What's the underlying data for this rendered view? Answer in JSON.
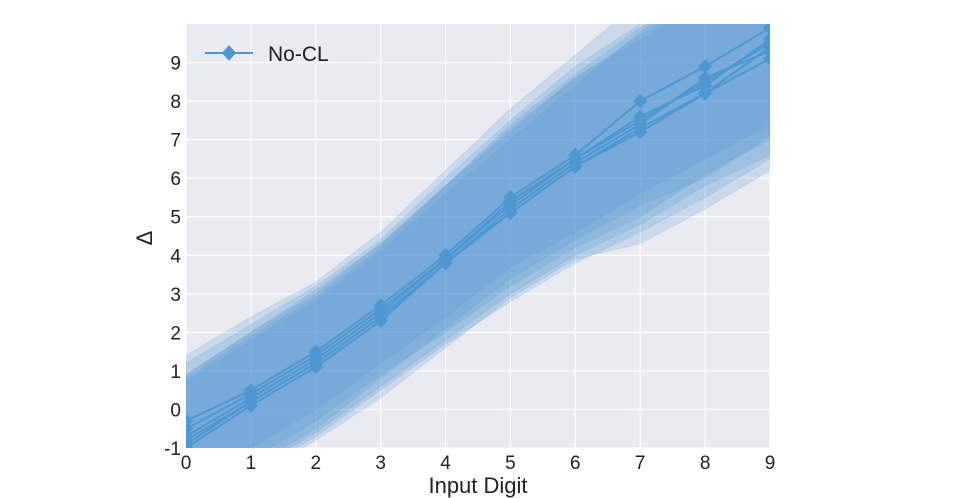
{
  "chart_data": {
    "type": "line",
    "title": "",
    "xlabel": "Input Digit",
    "ylabel": "Δ",
    "xlim": [
      0,
      9
    ],
    "ylim": [
      -1,
      10
    ],
    "xticks": [
      0,
      1,
      2,
      3,
      4,
      5,
      6,
      7,
      8,
      9
    ],
    "yticks": [
      -1,
      0,
      1,
      2,
      3,
      4,
      5,
      6,
      7,
      8,
      9
    ],
    "x": [
      0,
      1,
      2,
      3,
      4,
      5,
      6,
      7,
      8,
      9
    ],
    "grid": true,
    "legend": {
      "placement": "top-left",
      "entries": [
        "No-CL"
      ]
    },
    "color": "#4f97d3",
    "background": "#eaeaf2",
    "runs": [
      {
        "values": [
          -0.8,
          0.2,
          1.2,
          2.4,
          3.8,
          5.1,
          6.3,
          7.2,
          8.2,
          9.1
        ],
        "lower": [
          -2.5,
          -1.6,
          -0.6,
          0.6,
          1.8,
          3.0,
          4.0,
          4.8,
          5.8,
          6.6
        ],
        "upper": [
          0.9,
          2.0,
          3.0,
          4.3,
          5.8,
          7.2,
          8.6,
          9.6,
          10.6,
          11.6
        ]
      },
      {
        "values": [
          -0.5,
          0.4,
          1.4,
          2.6,
          3.9,
          5.3,
          6.5,
          7.5,
          8.5,
          9.5
        ],
        "lower": [
          -2.2,
          -1.3,
          -0.3,
          0.9,
          2.0,
          3.2,
          4.2,
          5.0,
          6.1,
          7.0
        ],
        "upper": [
          1.2,
          2.2,
          3.2,
          4.4,
          6.0,
          7.5,
          8.9,
          10.0,
          11.0,
          12.0
        ]
      },
      {
        "values": [
          -0.3,
          0.5,
          1.5,
          2.7,
          4.0,
          5.5,
          6.6,
          8.0,
          8.9,
          9.9
        ],
        "lower": [
          -2.0,
          -1.0,
          0.0,
          1.2,
          2.4,
          3.7,
          4.6,
          5.6,
          6.5,
          7.4
        ],
        "upper": [
          1.4,
          2.4,
          3.3,
          4.6,
          6.2,
          7.8,
          9.2,
          10.6,
          11.5,
          12.4
        ]
      },
      {
        "values": [
          -1.0,
          0.1,
          1.1,
          2.3,
          3.8,
          5.2,
          6.4,
          7.4,
          8.6,
          9.3
        ],
        "lower": [
          -2.8,
          -1.8,
          -0.8,
          0.3,
          1.6,
          2.9,
          3.9,
          4.3,
          5.2,
          6.2
        ],
        "upper": [
          0.7,
          1.8,
          2.8,
          4.1,
          5.6,
          7.0,
          8.4,
          9.8,
          10.9,
          11.6
        ]
      },
      {
        "values": [
          -0.7,
          0.3,
          1.3,
          2.5,
          3.9,
          5.4,
          6.5,
          7.6,
          8.4,
          9.6
        ],
        "lower": [
          -2.3,
          -1.5,
          -0.5,
          0.8,
          2.1,
          3.4,
          4.4,
          5.3,
          6.0,
          7.1
        ],
        "upper": [
          0.9,
          2.0,
          3.1,
          4.3,
          5.8,
          7.4,
          8.7,
          9.9,
          10.7,
          12.0
        ]
      },
      {
        "values": [
          -0.9,
          0.2,
          1.2,
          2.4,
          3.8,
          5.1,
          6.3,
          7.3,
          8.2,
          9.4
        ],
        "lower": [
          -2.6,
          -1.7,
          -0.7,
          0.5,
          1.7,
          2.8,
          3.8,
          4.6,
          5.5,
          6.5
        ],
        "upper": [
          0.8,
          1.9,
          2.9,
          4.2,
          5.8,
          7.3,
          8.6,
          9.7,
          10.8,
          11.9
        ]
      }
    ]
  }
}
